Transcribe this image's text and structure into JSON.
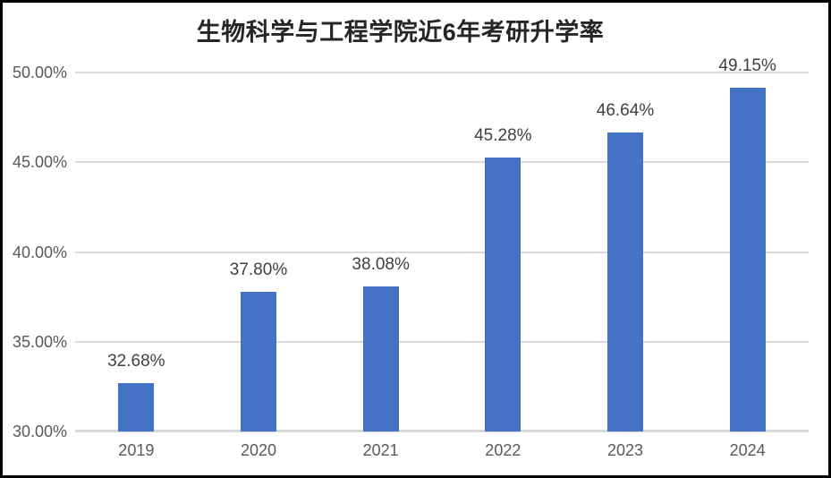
{
  "chart_data": {
    "type": "bar",
    "title": "生物科学与工程学院近6年考研升学率",
    "categories": [
      "2019",
      "2020",
      "2021",
      "2022",
      "2023",
      "2024"
    ],
    "values": [
      32.68,
      37.8,
      38.08,
      45.28,
      46.64,
      49.15
    ],
    "data_labels": [
      "32.68%",
      "37.80%",
      "38.08%",
      "45.28%",
      "46.64%",
      "49.15%"
    ],
    "xlabel": "",
    "ylabel": "",
    "grid": true,
    "legend": false,
    "y_axis": {
      "min": 30,
      "max": 50,
      "step": 5,
      "tick_labels": [
        "50.00%",
        "45.00%",
        "40.00%",
        "35.00%",
        "30.00%"
      ]
    },
    "colors": {
      "bar": "#4472C4",
      "gridline": "#D9D9D9",
      "axis_line": "#D9D9D9",
      "axis_text": "#595959",
      "data_label": "#404040",
      "title": "#262626",
      "background": "#FFFFFF",
      "frame_border": "#000000"
    }
  }
}
